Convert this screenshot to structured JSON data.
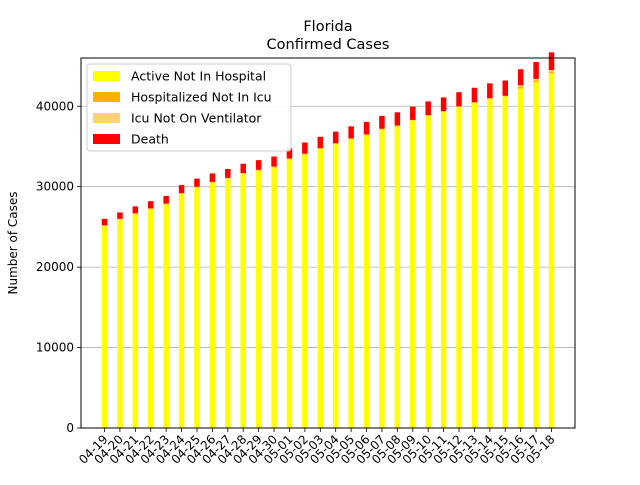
{
  "chart_data": {
    "type": "bar",
    "stacked": true,
    "title": "Florida",
    "subtitle": "Confirmed Cases",
    "xlabel": "",
    "ylabel": "Number of Cases",
    "ylim": [
      0,
      46000
    ],
    "yticks": [
      0,
      10000,
      20000,
      30000,
      40000
    ],
    "grid": "horizontal",
    "legend_position": "top-left",
    "categories": [
      "04-19",
      "04-20",
      "04-21",
      "04-22",
      "04-23",
      "04-24",
      "04-25",
      "04-26",
      "04-27",
      "04-28",
      "04-29",
      "04-30",
      "05-01",
      "05-02",
      "05-03",
      "05-04",
      "05-05",
      "05-06",
      "05-07",
      "05-08",
      "05-09",
      "05-10",
      "05-11",
      "05-12",
      "05-13",
      "05-14",
      "05-15",
      "05-16",
      "05-17",
      "05-18"
    ],
    "series": [
      {
        "name": "Active Not In Hospital",
        "color": "#ffff00",
        "values": [
          25100,
          25900,
          26600,
          27200,
          27800,
          29100,
          29900,
          30500,
          31000,
          31600,
          32000,
          32400,
          33400,
          34000,
          34700,
          35300,
          35900,
          36400,
          37100,
          37500,
          38200,
          38800,
          39300,
          39900,
          40400,
          40900,
          41200,
          42200,
          43000,
          44100
        ]
      },
      {
        "name": "Hospitalized Not In Icu",
        "color": "#ffb000",
        "values": [
          60,
          60,
          60,
          60,
          60,
          60,
          60,
          60,
          60,
          60,
          60,
          60,
          60,
          60,
          60,
          60,
          60,
          60,
          60,
          60,
          60,
          60,
          60,
          60,
          60,
          60,
          60,
          200,
          200,
          200
        ]
      },
      {
        "name": "Icu Not On Ventilator",
        "color": "#ffd27a",
        "values": [
          40,
          40,
          40,
          40,
          40,
          40,
          40,
          40,
          40,
          40,
          40,
          40,
          40,
          40,
          40,
          40,
          40,
          40,
          40,
          40,
          40,
          40,
          40,
          40,
          40,
          40,
          40,
          200,
          200,
          200
        ]
      },
      {
        "name": "Death",
        "color": "#ff0000",
        "values": [
          800,
          800,
          850,
          900,
          950,
          1000,
          1000,
          1050,
          1100,
          1150,
          1200,
          1250,
          1300,
          1400,
          1400,
          1450,
          1500,
          1550,
          1600,
          1650,
          1650,
          1700,
          1700,
          1750,
          1800,
          1850,
          1900,
          2000,
          2100,
          2200
        ]
      }
    ]
  }
}
